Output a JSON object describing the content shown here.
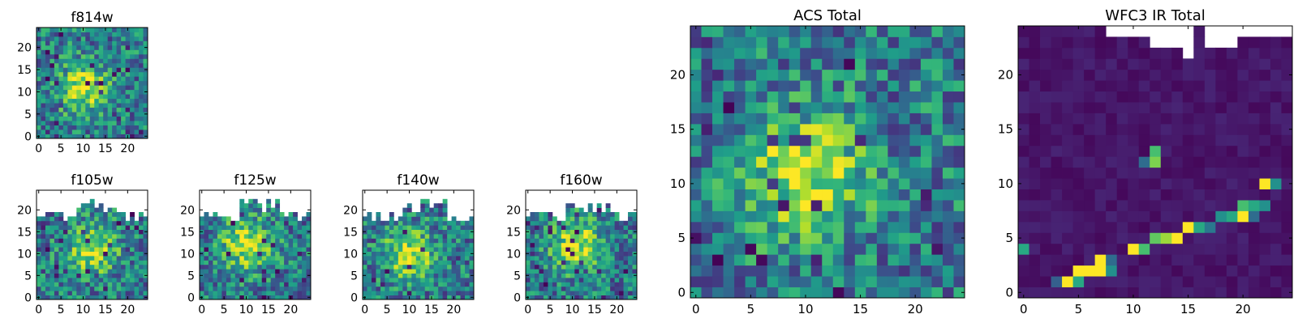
{
  "chart_data": [
    {
      "type": "heatmap",
      "title": "f814w",
      "xticks": [
        "0",
        "5",
        "10",
        "15",
        "20"
      ],
      "yticks": [
        "0",
        "5",
        "10",
        "15",
        "20"
      ],
      "xlim": [
        -0.5,
        24.5
      ],
      "ylim": [
        -0.5,
        24.5
      ],
      "colormap": "viridis",
      "cmap_range": [
        0,
        1
      ],
      "peak": {
        "x": 10,
        "y": 11
      },
      "masked": "none"
    },
    {
      "type": "heatmap",
      "title": "f105w",
      "xticks": [
        "0",
        "5",
        "10",
        "15",
        "20"
      ],
      "yticks": [
        "0",
        "5",
        "10",
        "15",
        "20"
      ],
      "xlim": [
        -0.5,
        24.5
      ],
      "ylim": [
        -0.5,
        24.5
      ],
      "colormap": "viridis",
      "cmap_range": [
        0,
        1
      ],
      "peak": {
        "x": 12,
        "y": 11
      },
      "masked": "top rows (white)"
    },
    {
      "type": "heatmap",
      "title": "f125w",
      "xticks": [
        "0",
        "5",
        "10",
        "15",
        "20"
      ],
      "yticks": [
        "0",
        "5",
        "10",
        "15",
        "20"
      ],
      "xlim": [
        -0.5,
        24.5
      ],
      "ylim": [
        -0.5,
        24.5
      ],
      "colormap": "viridis",
      "cmap_range": [
        0,
        1
      ],
      "peak": {
        "x": 10,
        "y": 12
      },
      "masked": "top rows (white)"
    },
    {
      "type": "heatmap",
      "title": "f140w",
      "xticks": [
        "0",
        "5",
        "10",
        "15",
        "20"
      ],
      "yticks": [
        "0",
        "5",
        "10",
        "15",
        "20"
      ],
      "xlim": [
        -0.5,
        24.5
      ],
      "ylim": [
        -0.5,
        24.5
      ],
      "colormap": "viridis",
      "cmap_range": [
        0,
        1
      ],
      "peak": {
        "x": 10,
        "y": 10
      },
      "masked": "top rows (white)"
    },
    {
      "type": "heatmap",
      "title": "f160w",
      "xticks": [
        "0",
        "5",
        "10",
        "15",
        "20"
      ],
      "yticks": [
        "0",
        "5",
        "10",
        "15",
        "20"
      ],
      "xlim": [
        -0.5,
        24.5
      ],
      "ylim": [
        -0.5,
        24.5
      ],
      "colormap": "viridis",
      "cmap_range": [
        0,
        1
      ],
      "peak": {
        "x": 11,
        "y": 12
      },
      "masked": "top rows (white)"
    },
    {
      "type": "heatmap",
      "title": "ACS Total",
      "xticks": [
        "0",
        "5",
        "10",
        "15",
        "20"
      ],
      "yticks": [
        "0",
        "5",
        "10",
        "15",
        "20"
      ],
      "xlim": [
        -0.5,
        24.5
      ],
      "ylim": [
        -0.5,
        24.5
      ],
      "colormap": "viridis",
      "cmap_range": [
        0,
        1
      ],
      "peak": {
        "x": 10,
        "y": 11
      },
      "masked": "none"
    },
    {
      "type": "heatmap",
      "title": "WFC3 IR Total",
      "xticks": [
        "0",
        "5",
        "10",
        "15",
        "20"
      ],
      "yticks": [
        "0",
        "5",
        "10",
        "15",
        "20"
      ],
      "xlim": [
        -0.5,
        24.5
      ],
      "ylim": [
        -0.5,
        24.5
      ],
      "colormap": "viridis",
      "cmap_range": [
        0,
        1
      ],
      "masked": "top rows (white)",
      "bright_pixels": [
        {
          "x": 4,
          "y": 1,
          "v": 1.0
        },
        {
          "x": 5,
          "y": 2,
          "v": 1.0
        },
        {
          "x": 6,
          "y": 2,
          "v": 1.0
        },
        {
          "x": 7,
          "y": 2,
          "v": 1.0
        },
        {
          "x": 7,
          "y": 3,
          "v": 1.0
        },
        {
          "x": 5,
          "y": 1,
          "v": 0.6
        },
        {
          "x": 8,
          "y": 2,
          "v": 0.5
        },
        {
          "x": 10,
          "y": 4,
          "v": 1.0
        },
        {
          "x": 11,
          "y": 4,
          "v": 0.7
        },
        {
          "x": 12,
          "y": 5,
          "v": 0.75
        },
        {
          "x": 13,
          "y": 5,
          "v": 0.85
        },
        {
          "x": 14,
          "y": 5,
          "v": 1.0
        },
        {
          "x": 15,
          "y": 6,
          "v": 1.0
        },
        {
          "x": 16,
          "y": 6,
          "v": 0.6
        },
        {
          "x": 17,
          "y": 6,
          "v": 0.4
        },
        {
          "x": 18,
          "y": 7,
          "v": 0.5
        },
        {
          "x": 19,
          "y": 7,
          "v": 0.6
        },
        {
          "x": 20,
          "y": 7,
          "v": 1.0
        },
        {
          "x": 20,
          "y": 8,
          "v": 0.7
        },
        {
          "x": 21,
          "y": 8,
          "v": 0.6
        },
        {
          "x": 22,
          "y": 8,
          "v": 0.5
        },
        {
          "x": 21,
          "y": 7,
          "v": 0.35
        },
        {
          "x": 22,
          "y": 10,
          "v": 1.0
        },
        {
          "x": 23,
          "y": 10,
          "v": 0.5
        },
        {
          "x": 12,
          "y": 12,
          "v": 0.8
        },
        {
          "x": 12,
          "y": 13,
          "v": 0.7
        },
        {
          "x": 11,
          "y": 12,
          "v": 0.35
        },
        {
          "x": 0,
          "y": 4,
          "v": 0.6
        },
        {
          "x": 3,
          "y": 1,
          "v": 0.3
        },
        {
          "x": 8,
          "y": 3,
          "v": 0.35
        }
      ]
    }
  ]
}
